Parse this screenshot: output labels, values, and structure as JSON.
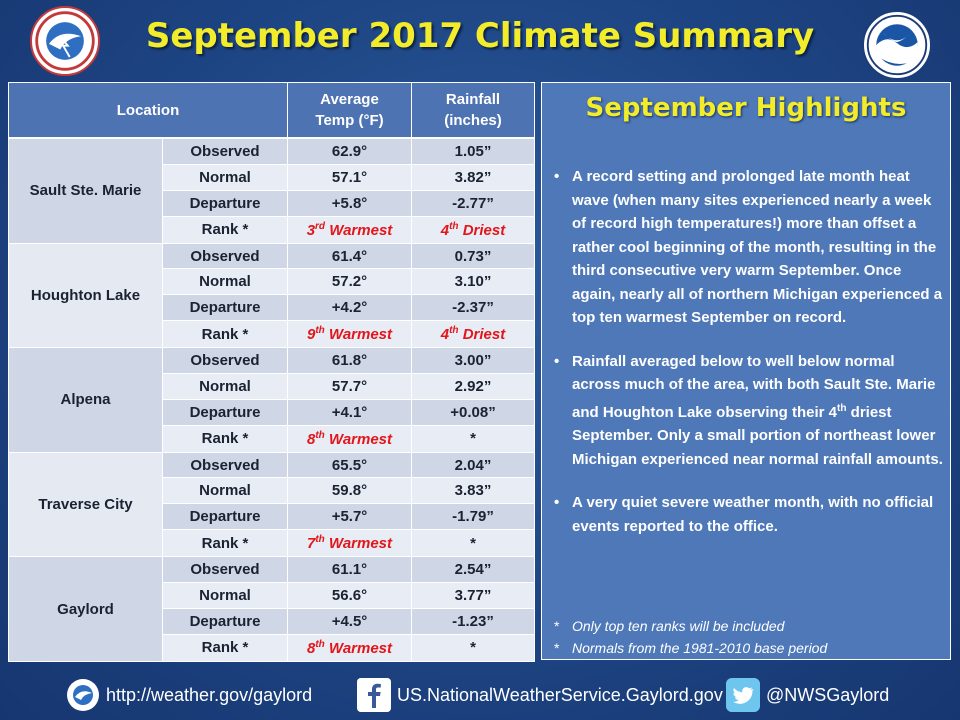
{
  "title": "September 2017 Climate Summary",
  "table": {
    "headers": {
      "location": "Location",
      "temp_line1": "Average",
      "temp_line2": "Temp (°F)",
      "rain_line1": "Rainfall",
      "rain_line2": "(inches)"
    },
    "row_labels": [
      "Observed",
      "Normal",
      "Departure",
      "Rank *"
    ],
    "locations": [
      {
        "name": "Sault Ste. Marie",
        "temp": [
          "62.9°",
          "57.1°",
          "+5.8°"
        ],
        "rain": [
          "1.05”",
          "3.82”",
          "-2.77”"
        ],
        "temp_rank": {
          "num": "3",
          "sup": "rd",
          "label": " Warmest"
        },
        "rain_rank": {
          "num": "4",
          "sup": "th",
          "label": " Driest"
        }
      },
      {
        "name": "Houghton Lake",
        "temp": [
          "61.4°",
          "57.2°",
          "+4.2°"
        ],
        "rain": [
          "0.73”",
          "3.10”",
          "-2.37”"
        ],
        "temp_rank": {
          "num": "9",
          "sup": "th",
          "label": " Warmest"
        },
        "rain_rank": {
          "num": "4",
          "sup": "th",
          "label": " Driest"
        }
      },
      {
        "name": "Alpena",
        "temp": [
          "61.8°",
          "57.7°",
          "+4.1°"
        ],
        "rain": [
          "3.00”",
          "2.92”",
          "+0.08”"
        ],
        "temp_rank": {
          "num": "8",
          "sup": "th",
          "label": " Warmest"
        },
        "rain_rank": {
          "plain": "*"
        }
      },
      {
        "name": "Traverse City",
        "temp": [
          "65.5°",
          "59.8°",
          "+5.7°"
        ],
        "rain": [
          "2.04”",
          "3.83”",
          "-1.79”"
        ],
        "temp_rank": {
          "num": "7",
          "sup": "th",
          "label": " Warmest"
        },
        "rain_rank": {
          "plain": "*"
        }
      },
      {
        "name": "Gaylord",
        "temp": [
          "61.1°",
          "56.6°",
          "+4.5°"
        ],
        "rain": [
          "2.54”",
          "3.77”",
          "-1.23”"
        ],
        "temp_rank": {
          "num": "8",
          "sup": "th",
          "label": " Warmest"
        },
        "rain_rank": {
          "plain": "*"
        }
      }
    ]
  },
  "highlights": {
    "title": "September Highlights",
    "b1": "A record setting and prolonged late month heat wave (when many sites experienced nearly a week of record high temperatures!) more than offset a rather cool beginning of the month, resulting in the third consecutive very warm September.  Once again, nearly all of northern Michigan experienced a top ten warmest September on record.",
    "b2_pre": "Rainfall averaged below to well below normal across much of the area, with both Sault Ste. Marie and Houghton Lake observing their 4",
    "b2_sup": "th",
    "b2_post": " driest September.  Only a small portion of northeast lower Michigan experienced near normal rainfall amounts.",
    "b3": "A very quiet severe weather month, with no official events reported to the office.",
    "note1": "Only top ten ranks will be included",
    "note2": "Normals from the 1981-2010 base period"
  },
  "footer": {
    "website": "http://weather.gov/gaylord",
    "facebook": "US.NationalWeatherService.Gaylord.gov",
    "twitter": "@NWSGaylord"
  },
  "logos": {
    "nws": "NATIONAL WEATHER SERVICE",
    "noaa": "NOAA"
  },
  "colors": {
    "title": "#f2ec2a",
    "rank_red": "#e2161b",
    "header_blue": "#4d73b2"
  }
}
